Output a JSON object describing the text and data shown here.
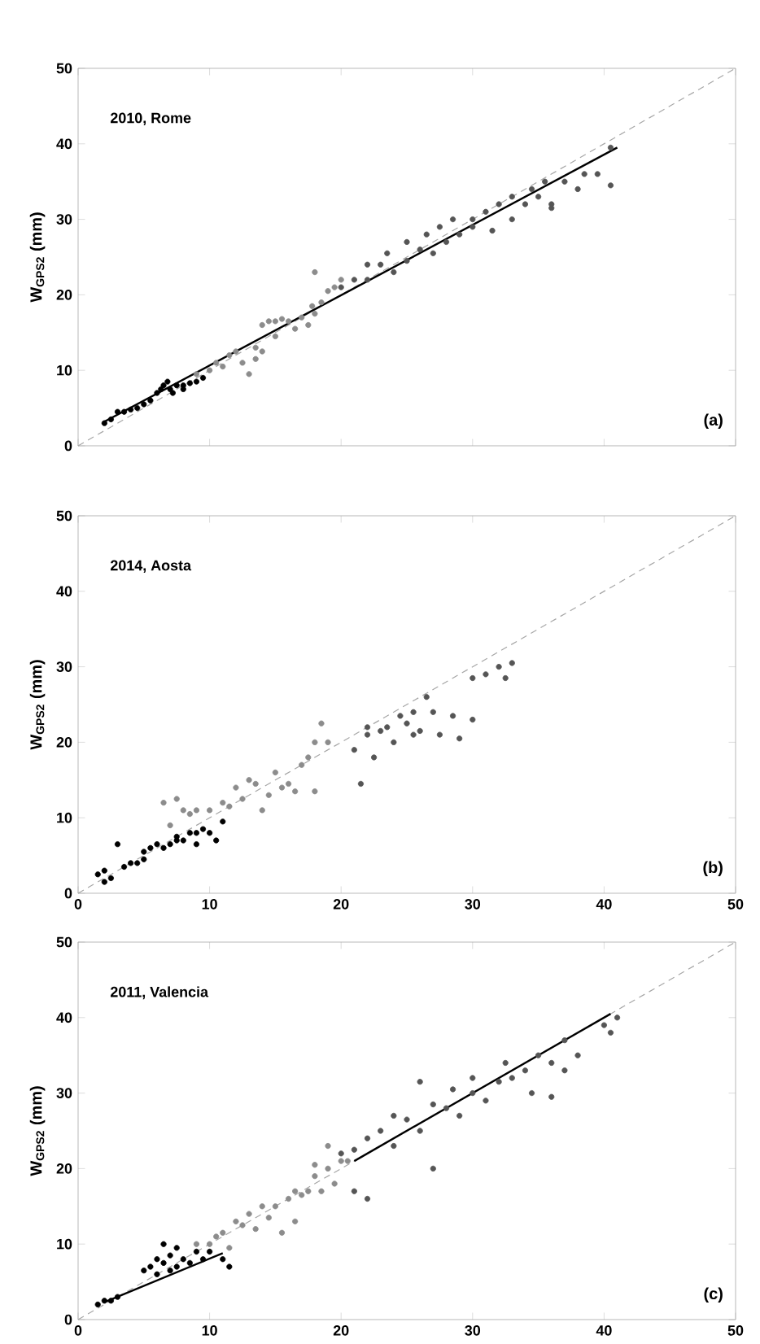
{
  "chart_data": [
    {
      "type": "scatter",
      "title": "2010, Rome",
      "ylabel": "W$_{GPS2}$ (mm)",
      "annotations": [
        "(a)"
      ],
      "xlim": [
        0,
        50
      ],
      "ylim": [
        0,
        50
      ],
      "xticks": [
        0,
        10,
        20,
        30,
        40,
        50
      ],
      "yticks": [
        0,
        10,
        20,
        30,
        40,
        50
      ],
      "tick_labels": "y",
      "series": [
        {
          "type": "line",
          "marker": "none",
          "line_style": "dashed",
          "color": "#a6a6a6",
          "x": [
            0,
            50
          ],
          "values": [
            0,
            50
          ]
        },
        {
          "type": "scatter",
          "marker": "circle",
          "color": "#000000",
          "x": [
            2,
            2.5,
            3,
            3.5,
            4,
            4.5,
            5,
            5.5,
            6,
            6.3,
            6.5,
            7,
            7.5,
            8,
            8.5,
            9,
            9.5,
            6.8,
            7.2,
            8
          ],
          "values": [
            3,
            3.5,
            4.5,
            4.5,
            4.8,
            5,
            5.5,
            6,
            7,
            7.5,
            8,
            7.5,
            8,
            8,
            8.3,
            8.5,
            9,
            8.5,
            7,
            7.5
          ]
        },
        {
          "type": "scatter",
          "marker": "circle",
          "color": "#8c8c8c",
          "x": [
            9,
            10,
            10.5,
            11,
            11.5,
            12,
            12.5,
            13,
            13.5,
            14,
            14.5,
            15,
            15.5,
            16,
            16.5,
            17,
            17.5,
            18,
            18.5,
            19,
            19.5,
            20,
            13.5,
            15,
            17.8,
            14,
            18
          ],
          "values": [
            9.5,
            10,
            11,
            10.5,
            12,
            12.5,
            11,
            9.5,
            11.5,
            16,
            16.5,
            16.5,
            16.8,
            16.5,
            15.5,
            17,
            16,
            17.5,
            19,
            20.5,
            21,
            22,
            13,
            14.5,
            18.5,
            12.5,
            23
          ]
        },
        {
          "type": "scatter",
          "marker": "circle",
          "color": "#555555",
          "x": [
            20,
            21,
            22,
            22,
            23,
            23.5,
            24,
            25,
            25,
            26,
            26.5,
            27,
            27.5,
            28,
            28.5,
            29,
            30,
            30,
            31,
            31.5,
            32,
            33,
            33,
            34,
            34.5,
            35,
            35.5,
            36,
            36,
            37,
            38,
            38.5,
            39.5,
            40.5,
            40.5
          ],
          "values": [
            21,
            22,
            22,
            24,
            24,
            25.5,
            23,
            27,
            24.5,
            26,
            28,
            25.5,
            29,
            27,
            30,
            28,
            30,
            29,
            31,
            28.5,
            32,
            30,
            33,
            32,
            34,
            33,
            35,
            32,
            31.5,
            35,
            34,
            36,
            36,
            34.5,
            39.5
          ]
        },
        {
          "type": "line",
          "marker": "none",
          "line_style": "solid",
          "color": "#000000",
          "x": [
            2,
            41
          ],
          "values": [
            3.2,
            39.5
          ]
        }
      ]
    },
    {
      "type": "scatter",
      "title": "2014, Aosta",
      "ylabel": "W$_{GPS2}$ (mm)",
      "annotations": [
        "(b)"
      ],
      "xlim": [
        0,
        50
      ],
      "ylim": [
        0,
        50
      ],
      "xticks": [
        0,
        10,
        20,
        30,
        40,
        50
      ],
      "yticks": [
        0,
        10,
        20,
        30,
        40,
        50
      ],
      "series": [
        {
          "type": "line",
          "marker": "none",
          "line_style": "dashed",
          "color": "#a6a6a6",
          "x": [
            0,
            50
          ],
          "values": [
            0,
            50
          ]
        },
        {
          "type": "scatter",
          "marker": "circle",
          "color": "#000000",
          "x": [
            1.5,
            2,
            2.5,
            2,
            3,
            3.5,
            4,
            4.5,
            5,
            5,
            5.5,
            6,
            6.5,
            7,
            7.5,
            8,
            8.5,
            9,
            9,
            9.5,
            10,
            10.5,
            11,
            7.5
          ],
          "values": [
            2.5,
            3,
            2,
            1.5,
            6.5,
            3.5,
            4,
            4,
            4.5,
            5.5,
            6,
            6.5,
            6,
            6.5,
            7,
            7,
            8,
            8,
            6.5,
            8.5,
            8,
            7,
            9.5,
            7.5
          ]
        },
        {
          "type": "scatter",
          "marker": "circle",
          "color": "#8c8c8c",
          "x": [
            6.5,
            7,
            7.5,
            8,
            8.5,
            9,
            10,
            11,
            11.5,
            12,
            12.5,
            13,
            13.5,
            14,
            14.5,
            15,
            15.5,
            16,
            16.5,
            17,
            17.5,
            18,
            18,
            18.5,
            19
          ],
          "values": [
            12,
            9,
            12.5,
            11,
            10.5,
            11,
            11,
            12,
            11.5,
            14,
            12.5,
            15,
            14.5,
            11,
            13,
            16,
            14,
            14.5,
            13.5,
            17,
            18,
            20,
            13.5,
            22.5,
            20
          ]
        },
        {
          "type": "scatter",
          "marker": "circle",
          "color": "#555555",
          "x": [
            21,
            21.5,
            22,
            22,
            22.5,
            23,
            23.5,
            24,
            24.5,
            25,
            25.5,
            26,
            26.5,
            27,
            27.5,
            28.5,
            29,
            30,
            30,
            31,
            32,
            33,
            32.5,
            25.5
          ],
          "values": [
            19,
            14.5,
            21,
            22,
            18,
            21.5,
            22,
            20,
            23.5,
            22.5,
            24,
            21.5,
            26,
            24,
            21,
            23.5,
            20.5,
            23,
            28.5,
            29,
            30,
            30.5,
            28.5,
            21
          ]
        }
      ]
    },
    {
      "type": "scatter",
      "title": "2011, Valencia",
      "ylabel": "W$_{GPS2}$ (mm)",
      "annotations": [
        "(c)"
      ],
      "xlim": [
        0,
        50
      ],
      "ylim": [
        0,
        50
      ],
      "xticks": [
        0,
        10,
        20,
        30,
        40,
        50
      ],
      "yticks": [
        0,
        10,
        20,
        30,
        40,
        50
      ],
      "series": [
        {
          "type": "line",
          "marker": "none",
          "line_style": "dashed",
          "color": "#a6a6a6",
          "x": [
            0,
            50
          ],
          "values": [
            0,
            50
          ]
        },
        {
          "type": "scatter",
          "marker": "circle",
          "color": "#000000",
          "x": [
            1.5,
            2,
            2.5,
            3,
            5,
            5.5,
            6,
            6,
            6.5,
            7,
            7,
            7.5,
            7.5,
            8,
            8.5,
            9,
            9.5,
            10,
            11,
            11.5,
            6.5
          ],
          "values": [
            2,
            2.5,
            2.5,
            3,
            6.5,
            7,
            6,
            8,
            7.5,
            6.5,
            8.5,
            7,
            9.5,
            8,
            7.5,
            9,
            8,
            9,
            8,
            7,
            10
          ]
        },
        {
          "type": "scatter",
          "marker": "circle",
          "color": "#8c8c8c",
          "x": [
            9,
            10,
            10.5,
            11,
            11.5,
            12,
            12.5,
            13,
            13.5,
            14,
            14.5,
            15,
            15.5,
            16,
            16.5,
            16.5,
            17,
            17.5,
            18,
            18.5,
            19,
            19.5,
            20,
            19,
            20.5,
            18
          ],
          "values": [
            10,
            10,
            11,
            11.5,
            9.5,
            13,
            12.5,
            14,
            12,
            15,
            13.5,
            15,
            11.5,
            16,
            17,
            13,
            16.5,
            17,
            19,
            17,
            20,
            18,
            21,
            23,
            21,
            20.5
          ]
        },
        {
          "type": "scatter",
          "marker": "circle",
          "color": "#555555",
          "x": [
            20,
            21,
            21,
            22,
            22,
            23,
            24,
            24,
            25,
            26,
            26,
            27,
            27,
            28,
            28.5,
            29,
            30,
            30,
            31,
            32,
            32.5,
            33,
            34,
            34.5,
            35,
            36,
            36,
            37,
            37,
            38,
            40,
            40.5,
            41
          ],
          "values": [
            22,
            22.5,
            17,
            16,
            24,
            25,
            23,
            27,
            26.5,
            25,
            31.5,
            20,
            28.5,
            28,
            30.5,
            27,
            30,
            32,
            29,
            31.5,
            34,
            32,
            33,
            30,
            35,
            29.5,
            34,
            33,
            37,
            35,
            39,
            38,
            40
          ]
        },
        {
          "type": "line",
          "marker": "none",
          "line_style": "solid",
          "color": "#000000",
          "x": [
            2,
            11
          ],
          "values": [
            2.3,
            8.8
          ]
        },
        {
          "type": "line",
          "marker": "none",
          "line_style": "solid",
          "color": "#000000",
          "x": [
            21,
            40.5
          ],
          "values": [
            21,
            40.5
          ]
        }
      ]
    }
  ]
}
